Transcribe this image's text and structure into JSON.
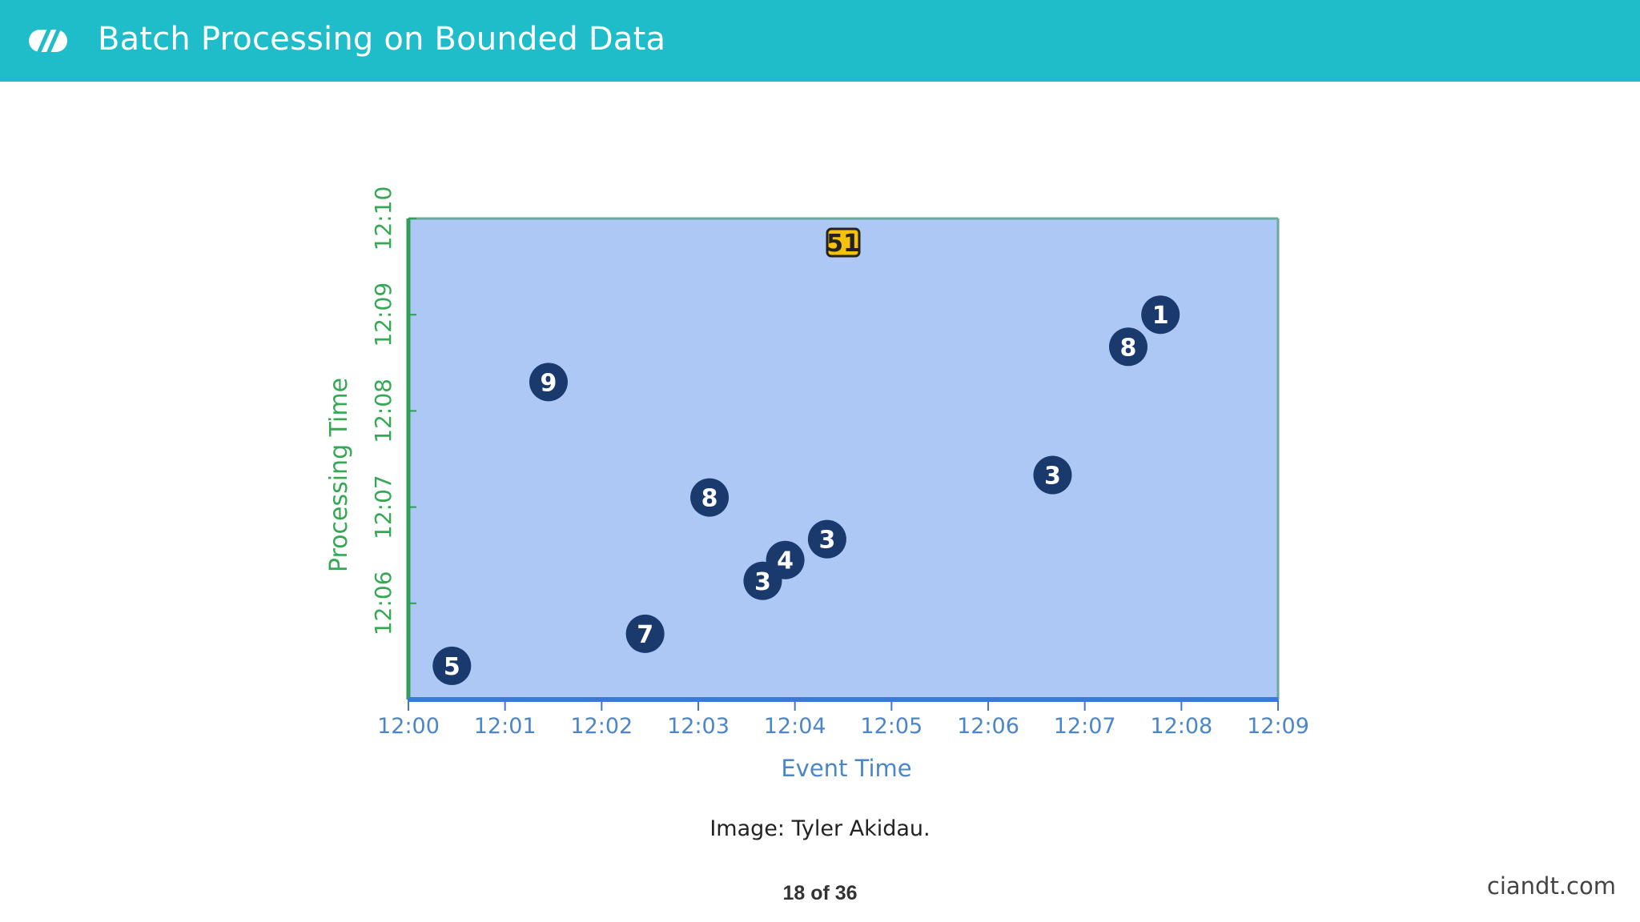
{
  "header": {
    "title": "Batch Processing on Bounded Data"
  },
  "chart_data": {
    "type": "scatter",
    "xlabel": "Event Time",
    "ylabel": "Processing Time",
    "x_ticks": [
      "12:00",
      "12:01",
      "12:02",
      "12:03",
      "12:04",
      "12:05",
      "12:06",
      "12:07",
      "12:08",
      "12:09"
    ],
    "y_ticks": [
      "12:06",
      "12:07",
      "12:08",
      "12:09",
      "12:10"
    ],
    "points": [
      {
        "x": "12:00:27",
        "y": "12:05:21",
        "label": "5"
      },
      {
        "x": "12:01:27",
        "y": "12:08:18",
        "label": "9"
      },
      {
        "x": "12:02:27",
        "y": "12:05:41",
        "label": "7"
      },
      {
        "x": "12:03:07",
        "y": "12:07:06",
        "label": "8"
      },
      {
        "x": "12:03:40",
        "y": "12:06:14",
        "label": "3"
      },
      {
        "x": "12:03:54",
        "y": "12:06:27",
        "label": "4"
      },
      {
        "x": "12:04:20",
        "y": "12:06:40",
        "label": "3"
      },
      {
        "x": "12:06:40",
        "y": "12:07:20",
        "label": "3"
      },
      {
        "x": "12:07:27",
        "y": "12:08:40",
        "label": "8"
      },
      {
        "x": "12:07:47",
        "y": "12:09:00",
        "label": "1"
      }
    ],
    "result": {
      "x": "12:04:30",
      "y": "12:09:45",
      "label": "51"
    },
    "colors": {
      "area": "#adc8f5",
      "x_axis": "#3c78d8",
      "y_axis": "#2e9e5a",
      "point": "#1a3a6e",
      "result_fill": "#f4c20d",
      "x_text": "#4a86c8",
      "y_text": "#34a853"
    }
  },
  "caption": "Image: Tyler Akidau.",
  "pager": "18 of 36",
  "site": "ciandt.com"
}
